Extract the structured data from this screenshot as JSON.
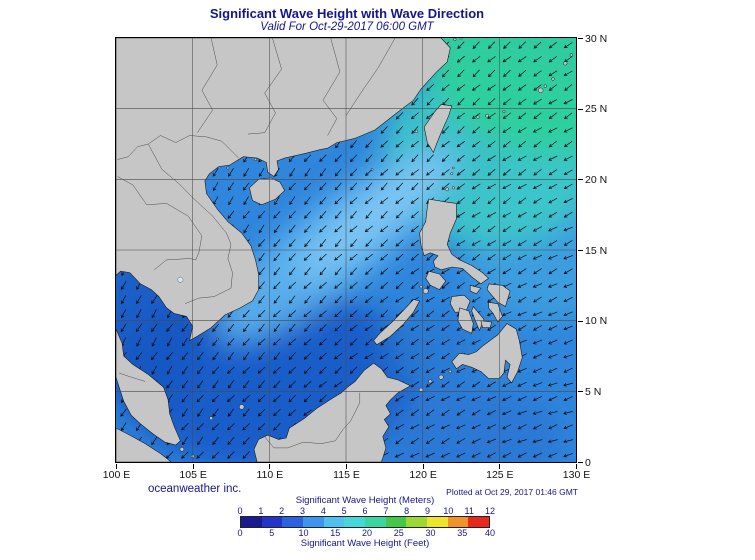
{
  "header": {
    "title": "Significant Wave Height with Wave Direction",
    "subtitle": "Valid For Oct-29-2017 06:00 GMT"
  },
  "map": {
    "x_tick_labels": [
      "100 E",
      "105 E",
      "110 E",
      "115 E",
      "120 E",
      "125 E",
      "130 E"
    ],
    "y_tick_labels": [
      "30 N",
      "25 N",
      "20 N",
      "15 N",
      "10 N",
      "5 N",
      "0"
    ],
    "wave_direction_summary": "dense field of small arrows over all ocean areas pointing predominantly southwest to west-southwest (northeast monsoon)",
    "shading_regions": [
      {
        "area": "northeast corner (Luzon Strait to Ryukyus / Philippine Sea north)",
        "appearance": "cyan to green, highest waves approx 4-5 m"
      },
      {
        "area": "central South China Sea band from Luzon Strait toward Vietnam",
        "appearance": "light blue, approx 3-4 m"
      },
      {
        "area": "southern South China Sea and Gulf of Thailand",
        "appearance": "dark blue, approx 1-2 m"
      },
      {
        "area": "Philippine Sea east and Celebes Sea",
        "appearance": "medium blue, approx 2-3 m"
      }
    ]
  },
  "legend": {
    "title_meters": "Significant Wave Height (Meters)",
    "title_feet": "Significant Wave Height (Feet)",
    "meters_ticks": [
      0,
      1,
      2,
      3,
      4,
      5,
      6,
      7,
      8,
      9,
      10,
      11,
      12
    ],
    "feet_ticks": [
      0,
      5,
      10,
      15,
      20,
      25,
      30,
      35,
      40
    ],
    "colors": [
      "#191990",
      "#2433c8",
      "#2b62e0",
      "#3c96ee",
      "#4fc1f0",
      "#46d8d8",
      "#3cd4a0",
      "#44c84a",
      "#9cd832",
      "#eee42c",
      "#f0942a",
      "#e8281c"
    ]
  },
  "footer": {
    "brand": "oceanweather inc.",
    "plotted_at": "Plotted at Oct 29, 2017 01:46 GMT"
  },
  "colors": {
    "title_text": "#15158c",
    "axis_text": "#111111",
    "land": "#c6c6c6",
    "land_outline": "#1a1a1a",
    "grid_line": "#4a4a4a",
    "arrow": "#0a0a0a",
    "ocean_base": "#2f86dc",
    "south_dark": "#1459c6",
    "gulf_dark": "#1657c2",
    "celebes": "#2673d2",
    "sulu": "#2a77d0",
    "philsea_light": "#49b4e4",
    "cyan_ne": "#3ecfc4",
    "green_corner": "#2fd09c",
    "band_light": "#63b8f0",
    "band_core": "#85caf4"
  }
}
